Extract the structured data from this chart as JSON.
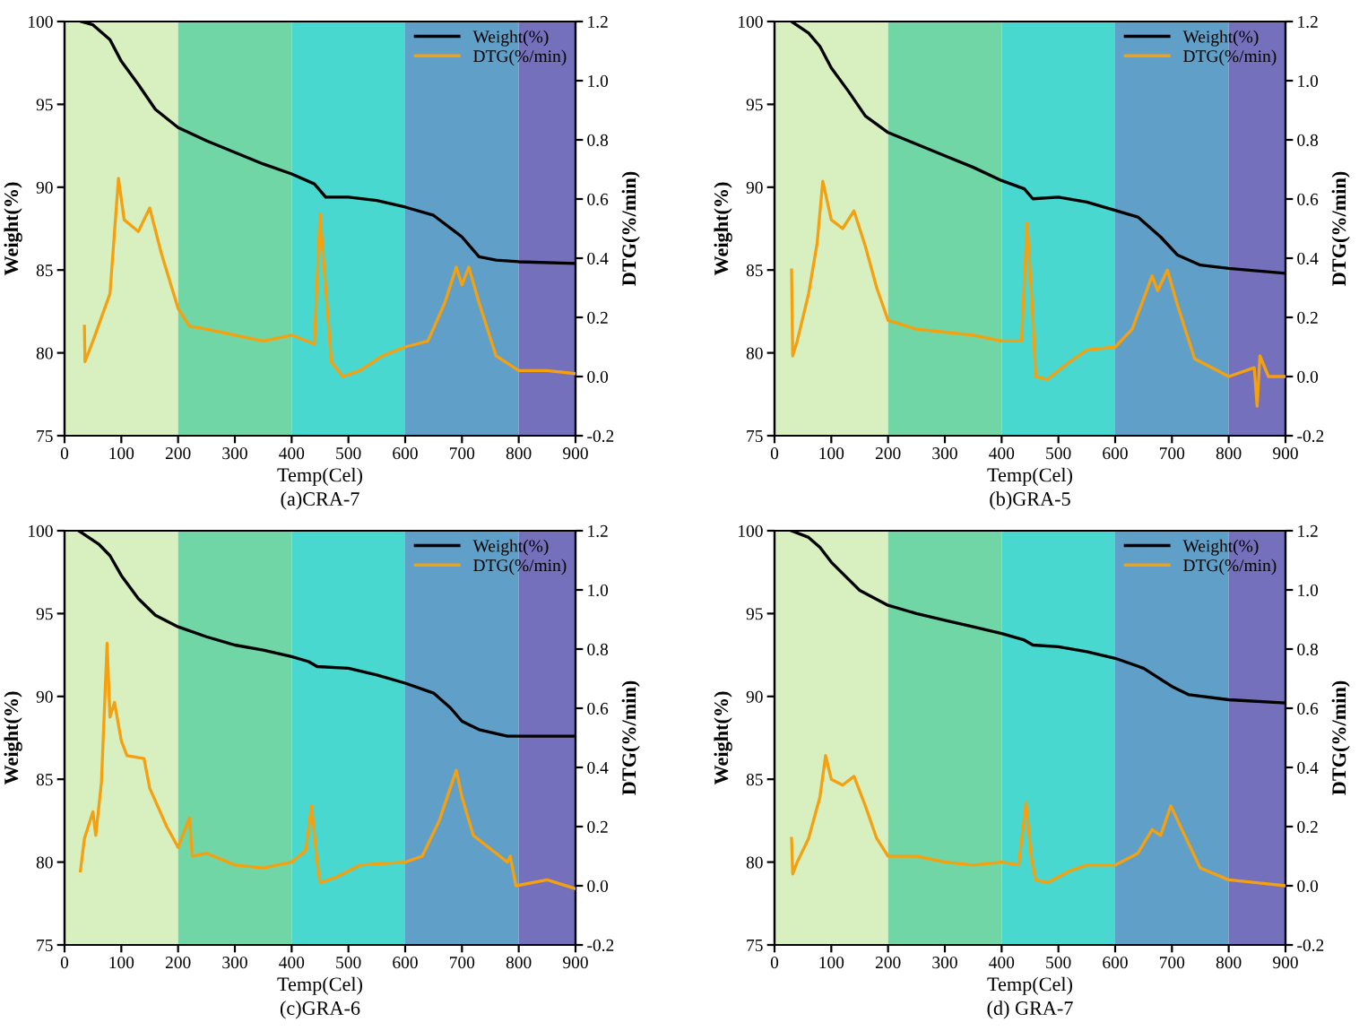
{
  "chart_data": [
    {
      "type": "line",
      "xlabel": "Temp(Cel)",
      "ylabel": "Weight(%)",
      "y2label": "DTG(%/min)",
      "annotations": [
        "(a)CRA-7"
      ],
      "legend": "top right",
      "xlim": [
        0,
        900
      ],
      "xticks": [
        0,
        100,
        200,
        300,
        400,
        500,
        600,
        700,
        800,
        900
      ],
      "ylim": [
        75,
        100
      ],
      "yticks": [
        75,
        80,
        85,
        90,
        95,
        100
      ],
      "y2lim": [
        -0.2,
        1.2
      ],
      "y2ticks": [
        {
          "value": -0.2,
          "label": "-0.2"
        },
        {
          "value": 0,
          "label": "0.0"
        },
        0.2,
        0.4,
        0.6,
        0.8,
        {
          "value": 1,
          "label": "1.0"
        },
        1.2
      ],
      "bands": [
        {
          "axis": "x",
          "from": 0,
          "to": 200,
          "color": "#d8f0c0"
        },
        {
          "axis": "x",
          "from": 200,
          "to": 400,
          "color": "#70d6a6"
        },
        {
          "axis": "x",
          "from": 400,
          "to": 600,
          "color": "#48d8d0"
        },
        {
          "axis": "x",
          "from": 600,
          "to": 800,
          "color": "#60a0c8"
        },
        {
          "axis": "x",
          "from": 800,
          "to": 900,
          "color": "#7470bc"
        }
      ],
      "series": [
        {
          "name": "Weight(%)",
          "color": "#000000",
          "x": [
            30,
            50,
            80,
            100,
            130,
            160,
            200,
            250,
            300,
            350,
            400,
            440,
            460,
            500,
            550,
            600,
            650,
            700,
            730,
            760,
            800,
            900
          ],
          "values": [
            100,
            99.8,
            98.9,
            97.6,
            96.2,
            94.7,
            93.6,
            92.8,
            92.1,
            91.4,
            90.8,
            90.2,
            89.4,
            89.4,
            89.2,
            88.8,
            88.3,
            87.0,
            85.8,
            85.6,
            85.5,
            85.4
          ]
        },
        {
          "name": "DTG(%/min)",
          "color": "#f5a00f",
          "axis": "y2",
          "x": [
            35,
            36,
            50,
            80,
            95,
            105,
            130,
            150,
            170,
            200,
            220,
            250,
            300,
            350,
            400,
            440,
            450,
            460,
            470,
            490,
            520,
            560,
            600,
            640,
            670,
            690,
            700,
            712,
            730,
            760,
            800,
            850,
            900
          ],
          "values": [
            0.17,
            0.05,
            0.12,
            0.28,
            0.67,
            0.53,
            0.49,
            0.57,
            0.42,
            0.23,
            0.17,
            0.16,
            0.14,
            0.12,
            0.14,
            0.11,
            0.55,
            0.3,
            0.05,
            0.0,
            0.02,
            0.07,
            0.1,
            0.12,
            0.25,
            0.37,
            0.31,
            0.37,
            0.25,
            0.07,
            0.02,
            0.02,
            0.01
          ]
        }
      ]
    },
    {
      "type": "line",
      "xlabel": "Temp(Cel)",
      "ylabel": "Weight(%)",
      "y2label": "DTG(%/min)",
      "annotations": [
        "(b)GRA-5"
      ],
      "legend": "top right",
      "xlim": [
        0,
        900
      ],
      "xticks": [
        0,
        100,
        200,
        300,
        400,
        500,
        600,
        700,
        800,
        900
      ],
      "ylim": [
        75,
        100
      ],
      "yticks": [
        75,
        80,
        85,
        90,
        95,
        100
      ],
      "y2lim": [
        -0.2,
        1.2
      ],
      "y2ticks": [
        {
          "value": -0.2,
          "label": "-0.2"
        },
        {
          "value": 0,
          "label": "0.0"
        },
        0.2,
        0.4,
        0.6,
        0.8,
        {
          "value": 1,
          "label": "1.0"
        },
        1.2
      ],
      "bands": [
        {
          "axis": "x",
          "from": 0,
          "to": 200,
          "color": "#d8f0c0"
        },
        {
          "axis": "x",
          "from": 200,
          "to": 400,
          "color": "#70d6a6"
        },
        {
          "axis": "x",
          "from": 400,
          "to": 600,
          "color": "#48d8d0"
        },
        {
          "axis": "x",
          "from": 600,
          "to": 800,
          "color": "#60a0c8"
        },
        {
          "axis": "x",
          "from": 800,
          "to": 900,
          "color": "#7470bc"
        }
      ],
      "series": [
        {
          "name": "Weight(%)",
          "color": "#000000",
          "x": [
            30,
            60,
            80,
            100,
            130,
            160,
            200,
            250,
            300,
            350,
            400,
            440,
            455,
            500,
            550,
            600,
            640,
            680,
            710,
            750,
            800,
            900
          ],
          "values": [
            100,
            99.3,
            98.5,
            97.2,
            95.8,
            94.3,
            93.3,
            92.6,
            91.9,
            91.2,
            90.4,
            89.9,
            89.3,
            89.4,
            89.1,
            88.6,
            88.2,
            87.0,
            85.9,
            85.3,
            85.1,
            84.8
          ]
        },
        {
          "name": "DTG(%/min)",
          "color": "#f5a00f",
          "axis": "y2",
          "x": [
            30,
            32,
            40,
            60,
            75,
            85,
            100,
            120,
            140,
            160,
            180,
            200,
            250,
            300,
            350,
            400,
            435,
            445,
            455,
            460,
            480,
            520,
            550,
            600,
            630,
            665,
            675,
            692,
            710,
            740,
            770,
            800,
            845,
            850,
            855,
            870,
            900
          ],
          "values": [
            0.36,
            0.07,
            0.12,
            0.28,
            0.45,
            0.66,
            0.53,
            0.5,
            0.56,
            0.44,
            0.3,
            0.19,
            0.16,
            0.15,
            0.14,
            0.12,
            0.12,
            0.52,
            0.2,
            0.0,
            -0.01,
            0.05,
            0.09,
            0.1,
            0.16,
            0.34,
            0.29,
            0.36,
            0.24,
            0.06,
            0.03,
            0.0,
            0.03,
            -0.1,
            0.07,
            0.0,
            0.0
          ]
        }
      ]
    },
    {
      "type": "line",
      "xlabel": "Temp(Cel)",
      "ylabel": "Weight(%)",
      "y2label": "DTG(%/min)",
      "annotations": [
        "(c)GRA-6"
      ],
      "legend": "top right",
      "xlim": [
        0,
        900
      ],
      "xticks": [
        0,
        100,
        200,
        300,
        400,
        500,
        600,
        700,
        800,
        900
      ],
      "ylim": [
        75,
        100
      ],
      "yticks": [
        75,
        80,
        85,
        90,
        95,
        100
      ],
      "y2lim": [
        -0.2,
        1.2
      ],
      "y2ticks": [
        {
          "value": -0.2,
          "label": "-0.2"
        },
        {
          "value": 0,
          "label": "0.0"
        },
        0.2,
        0.4,
        0.6,
        0.8,
        {
          "value": 1,
          "label": "1.0"
        },
        1.2
      ],
      "bands": [
        {
          "axis": "x",
          "from": 0,
          "to": 200,
          "color": "#d8f0c0"
        },
        {
          "axis": "x",
          "from": 200,
          "to": 400,
          "color": "#70d6a6"
        },
        {
          "axis": "x",
          "from": 400,
          "to": 600,
          "color": "#48d8d0"
        },
        {
          "axis": "x",
          "from": 600,
          "to": 800,
          "color": "#60a0c8"
        },
        {
          "axis": "x",
          "from": 800,
          "to": 900,
          "color": "#7470bc"
        }
      ],
      "series": [
        {
          "name": "Weight(%)",
          "color": "#000000",
          "x": [
            25,
            60,
            80,
            100,
            130,
            160,
            200,
            250,
            300,
            350,
            400,
            430,
            445,
            500,
            550,
            600,
            650,
            680,
            700,
            730,
            780,
            900
          ],
          "values": [
            100,
            99.2,
            98.5,
            97.3,
            95.9,
            94.9,
            94.2,
            93.6,
            93.1,
            92.8,
            92.4,
            92.1,
            91.8,
            91.7,
            91.3,
            90.8,
            90.2,
            89.3,
            88.5,
            88.0,
            87.6,
            87.6
          ]
        },
        {
          "name": "DTG(%/min)",
          "color": "#f5a00f",
          "axis": "y2",
          "x": [
            28,
            35,
            50,
            55,
            65,
            75,
            80,
            88,
            100,
            110,
            140,
            150,
            180,
            200,
            220,
            225,
            250,
            300,
            350,
            400,
            425,
            435,
            445,
            450,
            480,
            520,
            600,
            630,
            660,
            690,
            700,
            720,
            760,
            780,
            785,
            795,
            850,
            900
          ],
          "values": [
            0.05,
            0.16,
            0.25,
            0.17,
            0.35,
            0.82,
            0.57,
            0.62,
            0.49,
            0.44,
            0.43,
            0.33,
            0.2,
            0.13,
            0.23,
            0.1,
            0.11,
            0.07,
            0.06,
            0.08,
            0.12,
            0.27,
            0.08,
            0.01,
            0.03,
            0.07,
            0.08,
            0.1,
            0.22,
            0.39,
            0.3,
            0.17,
            0.11,
            0.08,
            0.1,
            0.0,
            0.02,
            -0.01
          ]
        }
      ]
    },
    {
      "type": "line",
      "xlabel": "Temp(Cel)",
      "ylabel": "Weight(%)",
      "y2label": "DTG(%/min)",
      "annotations": [
        "(d) GRA-7"
      ],
      "legend": "top right",
      "xlim": [
        0,
        900
      ],
      "xticks": [
        0,
        100,
        200,
        300,
        400,
        500,
        600,
        700,
        800,
        900
      ],
      "ylim": [
        75,
        100
      ],
      "yticks": [
        75,
        80,
        85,
        90,
        95,
        100
      ],
      "y2lim": [
        -0.2,
        1.2
      ],
      "y2ticks": [
        {
          "value": -0.2,
          "label": "-0.2"
        },
        {
          "value": 0,
          "label": "0.0"
        },
        0.2,
        0.4,
        0.6,
        0.8,
        {
          "value": 1,
          "label": "1.0"
        },
        1.2
      ],
      "bands": [
        {
          "axis": "x",
          "from": 0,
          "to": 200,
          "color": "#d8f0c0"
        },
        {
          "axis": "x",
          "from": 200,
          "to": 400,
          "color": "#70d6a6"
        },
        {
          "axis": "x",
          "from": 400,
          "to": 600,
          "color": "#48d8d0"
        },
        {
          "axis": "x",
          "from": 600,
          "to": 800,
          "color": "#60a0c8"
        },
        {
          "axis": "x",
          "from": 800,
          "to": 900,
          "color": "#7470bc"
        }
      ],
      "series": [
        {
          "name": "Weight(%)",
          "color": "#000000",
          "x": [
            30,
            60,
            80,
            100,
            150,
            200,
            250,
            300,
            350,
            400,
            440,
            455,
            500,
            550,
            600,
            650,
            700,
            730,
            800,
            900
          ],
          "values": [
            100,
            99.6,
            99.0,
            98.1,
            96.4,
            95.5,
            95.0,
            94.6,
            94.2,
            93.8,
            93.4,
            93.1,
            93.0,
            92.7,
            92.3,
            91.7,
            90.6,
            90.1,
            89.8,
            89.6
          ]
        },
        {
          "name": "DTG(%/min)",
          "color": "#f5a00f",
          "axis": "y2",
          "x": [
            30,
            32,
            40,
            60,
            80,
            90,
            100,
            120,
            140,
            160,
            180,
            200,
            250,
            300,
            350,
            400,
            430,
            443,
            452,
            460,
            480,
            520,
            550,
            600,
            640,
            665,
            680,
            698,
            720,
            750,
            800,
            850,
            900
          ],
          "values": [
            0.16,
            0.04,
            0.08,
            0.16,
            0.3,
            0.44,
            0.36,
            0.34,
            0.37,
            0.27,
            0.16,
            0.1,
            0.1,
            0.08,
            0.07,
            0.08,
            0.07,
            0.28,
            0.1,
            0.02,
            0.01,
            0.05,
            0.07,
            0.07,
            0.11,
            0.19,
            0.17,
            0.27,
            0.18,
            0.06,
            0.02,
            0.01,
            0.0
          ]
        }
      ]
    }
  ]
}
